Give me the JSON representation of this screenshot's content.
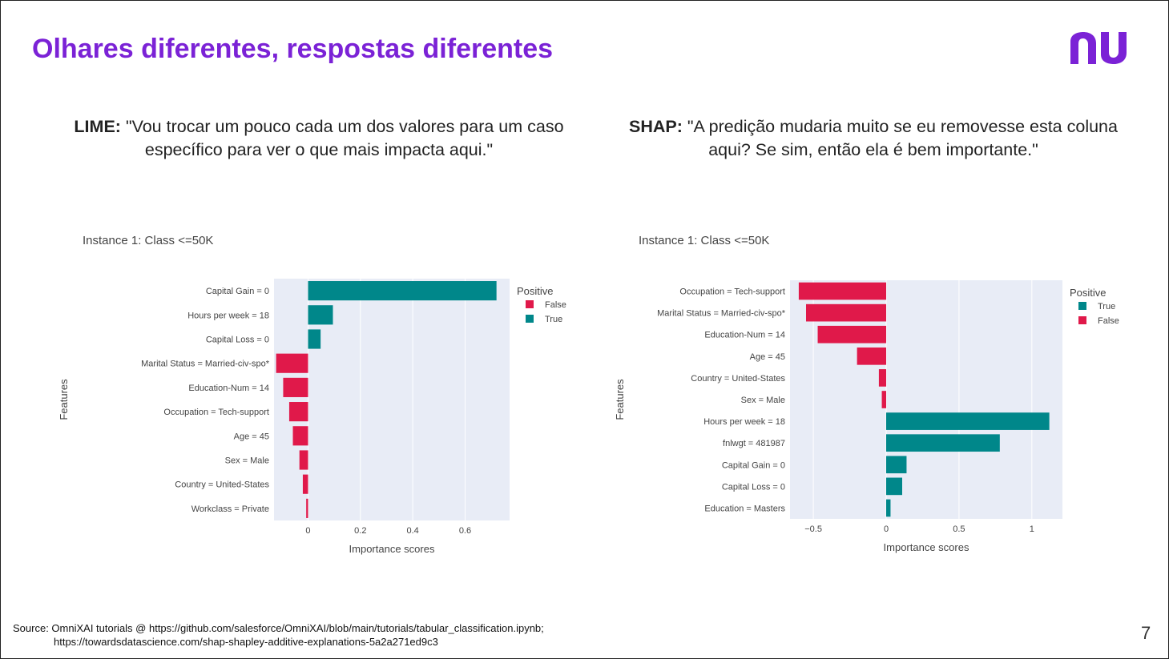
{
  "slide": {
    "title": "Olhares diferentes, respostas diferentes",
    "page_number": "7",
    "brand_color": "#7b22d6"
  },
  "quotes": {
    "lime": {
      "label": "LIME:",
      "text": "\"Vou trocar um pouco cada um dos valores para um caso específico para ver o que mais impacta aqui.\""
    },
    "shap": {
      "label": "SHAP:",
      "text": "\"A predição mudaria muito se eu removesse esta coluna aqui? Se sim, então ela é bem importante.\""
    }
  },
  "footer": {
    "line1": "Source: OmniXAI tutorials @ https://github.com/salesforce/OmniXAI/blob/main/tutorials/tabular_classification.ipynb;",
    "line2": "https://towardsdatascience.com/shap-shapley-additive-explanations-5a2a271ed9c3"
  },
  "colors": {
    "positive": "#00878a",
    "negative": "#e0194a",
    "plot_bg": "#e8ecf6"
  },
  "chart_data": [
    {
      "type": "bar",
      "orientation": "horizontal",
      "title": "Instance 1: Class <=50K",
      "xlabel": "Importance scores",
      "ylabel": "Features",
      "xlim": [
        -0.13,
        0.77
      ],
      "xticks": [
        0,
        0.2,
        0.4,
        0.6
      ],
      "xtick_labels": [
        "0",
        "0.2",
        "0.4",
        "0.6"
      ],
      "legend_title": "Positive",
      "legend": [
        {
          "label": "False",
          "color": "#e0194a"
        },
        {
          "label": "True",
          "color": "#00878a"
        }
      ],
      "legend_position": "top-right",
      "categories": [
        "Capital Gain = 0",
        "Hours per week = 18",
        "Capital Loss = 0",
        "Marital Status = Married-civ-spo*",
        "Education-Num = 14",
        "Occupation = Tech-support",
        "Age = 45",
        "Sex = Male",
        "Country = United-States",
        "Workclass = Private"
      ],
      "values": [
        0.72,
        0.095,
        0.048,
        -0.122,
        -0.095,
        -0.072,
        -0.058,
        -0.033,
        -0.02,
        -0.007
      ]
    },
    {
      "type": "bar",
      "orientation": "horizontal",
      "title": "Instance 1: Class <=50K",
      "xlabel": "Importance scores",
      "ylabel": "Features",
      "xlim": [
        -0.66,
        1.21
      ],
      "xticks": [
        -0.5,
        0,
        0.5,
        1
      ],
      "xtick_labels": [
        "−0.5",
        "0",
        "0.5",
        "1"
      ],
      "legend_title": "Positive",
      "legend": [
        {
          "label": "True",
          "color": "#00878a"
        },
        {
          "label": "False",
          "color": "#e0194a"
        }
      ],
      "legend_position": "top-right",
      "categories": [
        "Occupation = Tech-support",
        "Marital Status = Married-civ-spo*",
        "Education-Num = 14",
        "Age = 45",
        "Country = United-States",
        "Sex = Male",
        "Hours per week = 18",
        "fnlwgt = 481987",
        "Capital Gain = 0",
        "Capital Loss = 0",
        "Education = Masters"
      ],
      "values": [
        -0.6,
        -0.55,
        -0.47,
        -0.2,
        -0.05,
        -0.03,
        1.12,
        0.78,
        0.14,
        0.11,
        0.03
      ]
    }
  ]
}
